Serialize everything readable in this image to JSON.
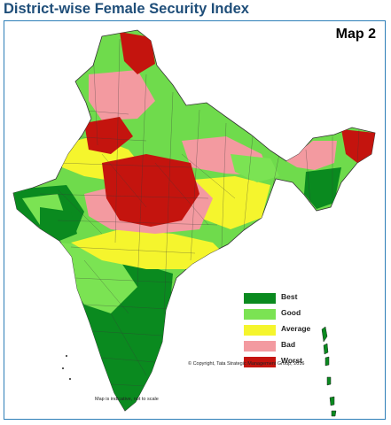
{
  "title": "District-wise Female Security Index",
  "map_label": "Map 2",
  "legend": [
    {
      "label": "Best",
      "color": "#0a8a1f"
    },
    {
      "label": "Good",
      "color": "#7be353"
    },
    {
      "label": "Average",
      "color": "#f5f52d"
    },
    {
      "label": "Bad",
      "color": "#f39aa0"
    },
    {
      "label": "Worst",
      "color": "#c4140e"
    }
  ],
  "copyright": "© Copyright, Tata Strategic Management Group, 2016",
  "disclaimer": "Map is indicative, not to scale"
}
